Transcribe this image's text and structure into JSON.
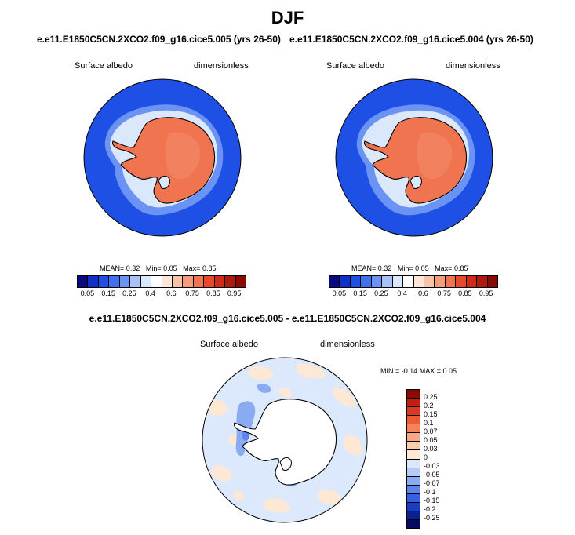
{
  "title": "DJF",
  "panels": [
    {
      "case": "e.e11.E1850C5CN.2XCO2.f09_g16.cice5.005 (yrs 26-50)",
      "variable": "Surface albedo",
      "units": "dimensionless",
      "stats": {
        "mean_label": "MEAN=",
        "mean": "0.32",
        "min_label": "Min=",
        "min": "0.05",
        "max_label": "Max=",
        "max": "0.85"
      }
    },
    {
      "case": "e.e11.E1850C5CN.2XCO2.f09_g16.cice5.004 (yrs 26-50)",
      "variable": "Surface albedo",
      "units": "dimensionless",
      "stats": {
        "mean_label": "MEAN=",
        "mean": "0.32",
        "min_label": "Min=",
        "min": "0.05",
        "max_label": "Max=",
        "max": "0.85"
      }
    }
  ],
  "diff_panel": {
    "case": "e.e11.E1850C5CN.2XCO2.f09_g16.cice5.005 - e.e11.E1850C5CN.2XCO2.f09_g16.cice5.004",
    "variable": "Surface albedo",
    "units": "dimensionless",
    "stats_text": "MIN = -0.14 MAX = 0.05"
  },
  "colorbar_labels": [
    "0.05",
    "0.15",
    "0.25",
    "0.4",
    "0.6",
    "0.75",
    "0.85",
    "0.95"
  ],
  "colorbar_colors": [
    "#0a0a80",
    "#1030c8",
    "#1e50e6",
    "#3f71ee",
    "#6a93f4",
    "#a8c2f8",
    "#dbe7fb",
    "#ffffff",
    "#fde6d8",
    "#f9c3a8",
    "#f59d7a",
    "#f07450",
    "#e8492c",
    "#d22a18",
    "#b01a0c",
    "#8b0a04"
  ],
  "diff_colorbar_labels": [
    "0.25",
    "0.2",
    "0.15",
    "0.1",
    "0.07",
    "0.05",
    "0.03",
    "0",
    "-0.03",
    "-0.05",
    "-0.07",
    "-0.1",
    "-0.15",
    "-0.2",
    "-0.25"
  ],
  "diff_colorbar_colors": [
    "#8b0a04",
    "#c41e10",
    "#dc3a20",
    "#ee5a34",
    "#f4825a",
    "#f8a884",
    "#fbcdb0",
    "#fde8d6",
    "#dce8fb",
    "#b5ccf6",
    "#8aaaf2",
    "#5c86ec",
    "#3460e2",
    "#1a3cc4",
    "#0d2090",
    "#060a60"
  ]
}
